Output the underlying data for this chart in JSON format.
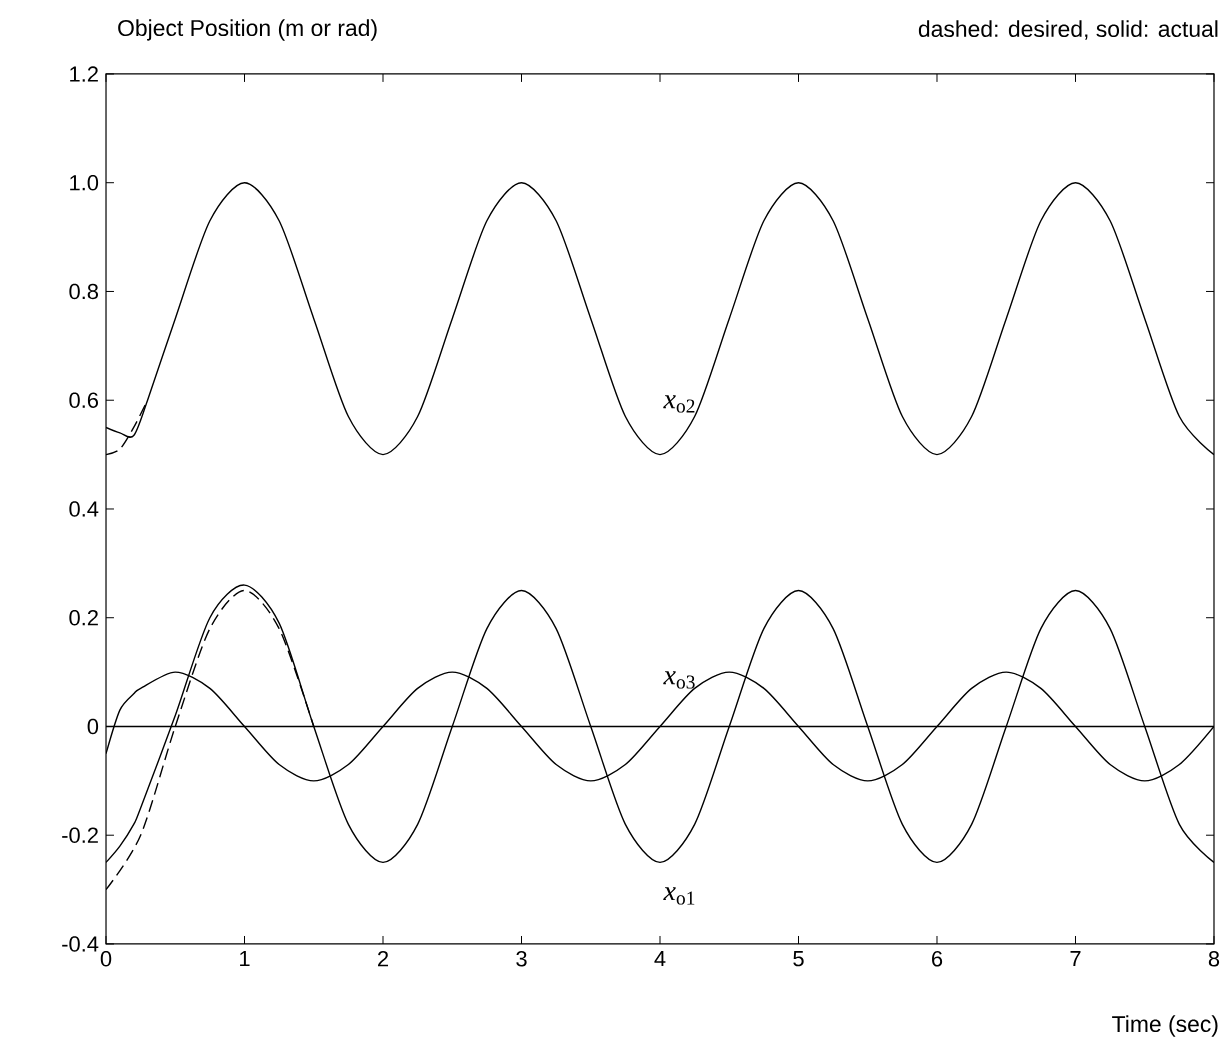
{
  "chart_data": {
    "type": "line",
    "title": "Object Position (m or rad)",
    "subtitle": "dashed: desired, solid: actual",
    "xlabel": "Time (sec)",
    "xlim": [
      0,
      8
    ],
    "ylim": [
      -0.4,
      1.2
    ],
    "xticks": [
      0,
      1,
      2,
      3,
      4,
      5,
      6,
      7,
      8
    ],
    "yticks": [
      -0.4,
      -0.2,
      0,
      0.2,
      0.4,
      0.6,
      0.8,
      {
        "value": 1.0,
        "label": "1.0"
      },
      1.2
    ],
    "grid": false,
    "ref_lines": [
      {
        "axis": "y",
        "value": 0,
        "color": "#000000",
        "line_style": "solid"
      }
    ],
    "annotations": [
      "*x*$_{o2}$",
      "*x*$_{o3}$",
      "*x*$_{o1}$"
    ],
    "series": [
      {
        "color": "#000000",
        "line_style": "dashed",
        "x": [
          0,
          0.1,
          0.2,
          0.3
        ],
        "values": [
          0.5,
          0.51,
          0.55,
          0.6
        ]
      },
      {
        "color": "#000000",
        "line_style": "solid",
        "x": [
          0,
          0.1,
          0.2,
          0.3,
          0.5,
          0.75,
          1,
          1.25,
          1.5,
          1.75,
          2,
          2.25,
          2.5,
          2.75,
          3,
          3.25,
          3.5,
          3.75,
          4,
          4.25,
          4.5,
          4.75,
          5,
          5.25,
          5.5,
          5.75,
          6,
          6.25,
          6.5,
          6.75,
          7,
          7.25,
          7.5,
          7.75,
          8
        ],
        "values": [
          0.55,
          0.54,
          0.535,
          0.6,
          0.75,
          0.93,
          1.0,
          0.93,
          0.75,
          0.57,
          0.5,
          0.57,
          0.75,
          0.93,
          1.0,
          0.93,
          0.75,
          0.57,
          0.5,
          0.57,
          0.75,
          0.93,
          1.0,
          0.93,
          0.75,
          0.57,
          0.5,
          0.57,
          0.75,
          0.93,
          1.0,
          0.93,
          0.75,
          0.57,
          0.5
        ]
      },
      {
        "color": "#000000",
        "line_style": "dashed",
        "x": [
          0,
          0.25,
          0.5,
          0.75,
          1,
          1.25,
          1.5
        ],
        "values": [
          -0.3,
          -0.2,
          0.0,
          0.18,
          0.25,
          0.18,
          0.0
        ]
      },
      {
        "color": "#000000",
        "line_style": "solid",
        "x": [
          0,
          0.1,
          0.2,
          0.25,
          0.5,
          0.75,
          1,
          1.25,
          1.5,
          1.75,
          2,
          2.25,
          2.5,
          2.75,
          3,
          3.25,
          3.5,
          3.75,
          4,
          4.25,
          4.5,
          4.75,
          5,
          5.25,
          5.5,
          5.75,
          6,
          6.25,
          6.5,
          6.75,
          7,
          7.25,
          7.5,
          7.75,
          8
        ],
        "values": [
          -0.25,
          -0.22,
          -0.18,
          -0.15,
          0.02,
          0.2,
          0.26,
          0.19,
          0.0,
          -0.18,
          -0.25,
          -0.18,
          0.0,
          0.18,
          0.25,
          0.18,
          0.0,
          -0.18,
          -0.25,
          -0.18,
          0.0,
          0.18,
          0.25,
          0.18,
          0.0,
          -0.18,
          -0.25,
          -0.18,
          0.0,
          0.18,
          0.25,
          0.18,
          0.0,
          -0.18,
          -0.25
        ]
      },
      {
        "color": "#000000",
        "line_style": "solid",
        "x": [
          0,
          0.1,
          0.2,
          0.25,
          0.5,
          0.75,
          1,
          1.25,
          1.5,
          1.75,
          2,
          2.25,
          2.5,
          2.75,
          3,
          3.25,
          3.5,
          3.75,
          4,
          4.25,
          4.5,
          4.75,
          5,
          5.25,
          5.5,
          5.75,
          6,
          6.25,
          6.5,
          6.75,
          7,
          7.25,
          7.5,
          7.75,
          8
        ],
        "values": [
          -0.05,
          0.03,
          0.06,
          0.07,
          0.1,
          0.07,
          0.0,
          -0.07,
          -0.1,
          -0.07,
          0.0,
          0.07,
          0.1,
          0.07,
          0.0,
          -0.07,
          -0.1,
          -0.07,
          0.0,
          0.07,
          0.1,
          0.07,
          0.0,
          -0.07,
          -0.1,
          -0.07,
          0.0,
          0.07,
          0.1,
          0.07,
          0.0,
          -0.07,
          -0.1,
          -0.07,
          0.0
        ]
      }
    ]
  }
}
